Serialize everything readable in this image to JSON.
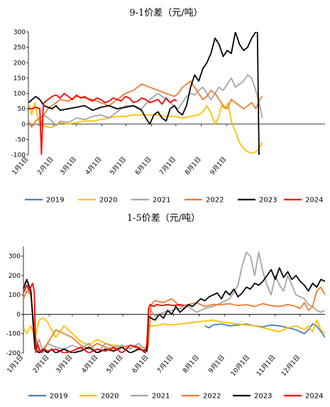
{
  "chart_data": [
    {
      "type": "line",
      "title": "9-1价差（元/吨）",
      "ylim": [
        -100,
        300
      ],
      "yticks": [
        -100,
        -50,
        0,
        50,
        100,
        150,
        200,
        250,
        300
      ],
      "xlim": [
        1,
        365
      ],
      "xticks": [
        {
          "label": "1月1日",
          "day": 1
        },
        {
          "label": "2月1日",
          "day": 32
        },
        {
          "label": "3月1日",
          "day": 60
        },
        {
          "label": "4月1日",
          "day": 91
        },
        {
          "label": "5月1日",
          "day": 121
        },
        {
          "label": "6月1日",
          "day": 152
        },
        {
          "label": "7月1日",
          "day": 182
        },
        {
          "label": "8月1日",
          "day": 213
        },
        {
          "label": "9月1日",
          "day": 244
        }
      ],
      "grid": false,
      "legend_position": "bottom",
      "series": [
        {
          "name": "2019",
          "color": "#4a7ebb",
          "x": [],
          "y": []
        },
        {
          "name": "2020",
          "color": "#ffc000",
          "x": [
            1,
            5,
            9,
            12,
            15,
            20,
            25,
            30,
            40,
            50,
            60,
            70,
            80,
            90,
            100,
            110,
            120,
            130,
            140,
            150,
            160,
            170,
            180,
            190,
            200,
            210,
            215,
            220,
            225,
            230,
            234,
            238,
            242,
            246,
            250,
            255,
            260,
            265,
            270,
            275,
            280,
            285,
            288
          ],
          "y": [
            70,
            30,
            70,
            30,
            0,
            -5,
            -10,
            -10,
            5,
            0,
            5,
            10,
            10,
            15,
            20,
            25,
            25,
            30,
            30,
            30,
            30,
            25,
            25,
            20,
            25,
            30,
            40,
            60,
            35,
            0,
            20,
            60,
            50,
            70,
            10,
            -25,
            -60,
            -80,
            -90,
            -95,
            -90,
            -75,
            -60
          ]
        },
        {
          "name": "2021",
          "color": "#a5a5a5",
          "x": [
            1,
            6,
            10,
            15,
            20,
            25,
            30,
            35,
            40,
            50,
            60,
            70,
            80,
            90,
            100,
            110,
            120,
            130,
            140,
            150,
            160,
            170,
            180,
            185,
            190,
            195,
            200,
            205,
            210,
            215,
            220,
            225,
            230,
            235,
            240,
            245,
            250,
            255,
            260,
            265,
            270,
            275,
            280,
            285,
            288
          ],
          "y": [
            0,
            -5,
            0,
            -5,
            30,
            20,
            10,
            -5,
            10,
            5,
            20,
            15,
            25,
            30,
            20,
            40,
            60,
            60,
            50,
            80,
            100,
            80,
            60,
            50,
            70,
            90,
            100,
            95,
            110,
            120,
            100,
            80,
            100,
            120,
            110,
            130,
            150,
            120,
            130,
            140,
            160,
            150,
            110,
            60,
            20
          ]
        },
        {
          "name": "2022",
          "color": "#ed7d31",
          "x": [
            1,
            5,
            10,
            15,
            20,
            25,
            30,
            35,
            40,
            50,
            60,
            70,
            80,
            90,
            100,
            110,
            120,
            130,
            140,
            150,
            160,
            170,
            180,
            185,
            190,
            195,
            200,
            205,
            210,
            215,
            220,
            225,
            230,
            235,
            240,
            245,
            250,
            255,
            260,
            265,
            270,
            275,
            280,
            285,
            288
          ],
          "y": [
            10,
            -10,
            10,
            20,
            30,
            50,
            60,
            70,
            80,
            75,
            90,
            85,
            80,
            70,
            60,
            80,
            100,
            110,
            130,
            120,
            110,
            100,
            90,
            100,
            120,
            130,
            140,
            120,
            100,
            80,
            90,
            110,
            100,
            80,
            60,
            50,
            80,
            70,
            60,
            50,
            60,
            70,
            50,
            80,
            90
          ]
        },
        {
          "name": "2023",
          "color": "#000000",
          "x": [
            1,
            10,
            15,
            20,
            25,
            30,
            35,
            40,
            50,
            60,
            70,
            80,
            90,
            100,
            110,
            120,
            130,
            140,
            145,
            150,
            155,
            160,
            165,
            170,
            175,
            180,
            185,
            190,
            195,
            200,
            205,
            210,
            215,
            220,
            225,
            230,
            235,
            240,
            245,
            250,
            255,
            260,
            265,
            270,
            275,
            280,
            282,
            284
          ],
          "y": [
            70,
            90,
            80,
            60,
            55,
            50,
            60,
            45,
            50,
            55,
            60,
            45,
            55,
            60,
            50,
            55,
            60,
            45,
            20,
            0,
            30,
            40,
            20,
            10,
            50,
            60,
            40,
            30,
            60,
            120,
            160,
            140,
            180,
            200,
            230,
            280,
            260,
            220,
            240,
            230,
            300,
            260,
            240,
            250,
            280,
            300,
            300,
            -100
          ]
        },
        {
          "name": "2024",
          "color": "#ff0000",
          "x": [
            1,
            5,
            10,
            15,
            17,
            19,
            20,
            25,
            30,
            35,
            40,
            45,
            50,
            55,
            60,
            65,
            70,
            75,
            80,
            85,
            90,
            95,
            100,
            105,
            110,
            115,
            120,
            125,
            130,
            135,
            140,
            145,
            150,
            155,
            160,
            165,
            170,
            175,
            180,
            183
          ],
          "y": [
            50,
            50,
            55,
            50,
            -100,
            50,
            70,
            80,
            90,
            95,
            85,
            100,
            90,
            80,
            95,
            85,
            90,
            80,
            75,
            85,
            80,
            70,
            75,
            85,
            80,
            75,
            90,
            85,
            70,
            75,
            85,
            80,
            70,
            75,
            80,
            65,
            85,
            70,
            80,
            75
          ]
        }
      ]
    },
    {
      "type": "line",
      "title": "1-5价差（元/吨）",
      "ylim": [
        -200,
        350
      ],
      "yticks": [
        -200,
        -100,
        0,
        100,
        200,
        300
      ],
      "xlim": [
        1,
        365
      ],
      "xticks": [
        {
          "label": "1月1日",
          "day": 1
        },
        {
          "label": "2月1日",
          "day": 32
        },
        {
          "label": "3月1日",
          "day": 60
        },
        {
          "label": "4月1日",
          "day": 91
        },
        {
          "label": "5月1日",
          "day": 121
        },
        {
          "label": "6月1日",
          "day": 152
        },
        {
          "label": "7月1日",
          "day": 182
        },
        {
          "label": "8月1日",
          "day": 213
        },
        {
          "label": "9月1日",
          "day": 244
        },
        {
          "label": "10月1日",
          "day": 274
        },
        {
          "label": "11月1日",
          "day": 305
        },
        {
          "label": "12月1日",
          "day": 335
        }
      ],
      "grid": false,
      "legend_position": "bottom",
      "series": [
        {
          "name": "2019",
          "color": "#4a7ebb",
          "x": [
            220,
            225,
            230,
            240,
            250,
            260,
            270,
            280,
            290,
            300,
            310,
            320,
            330,
            335,
            340,
            345,
            350,
            355,
            360,
            365
          ],
          "y": [
            -60,
            -70,
            -55,
            -50,
            -60,
            -55,
            -50,
            -60,
            -65,
            -55,
            -60,
            -70,
            -80,
            -90,
            -100,
            -80,
            -50,
            -60,
            -90,
            -120
          ]
        },
        {
          "name": "2020",
          "color": "#ffc000",
          "x": [
            1,
            5,
            10,
            15,
            20,
            25,
            30,
            35,
            40,
            50,
            60,
            70,
            80,
            90,
            100,
            110,
            120,
            130,
            140,
            145,
            150,
            152,
            155,
            160,
            170,
            180,
            190,
            200,
            210,
            220,
            230,
            240,
            250,
            260,
            270,
            280,
            290,
            300,
            310,
            320,
            330,
            340,
            345,
            350,
            355,
            360,
            365
          ],
          "y": [
            -70,
            -100,
            -60,
            -120,
            -30,
            -20,
            -40,
            -80,
            -120,
            -60,
            -100,
            -140,
            -160,
            -130,
            -150,
            -160,
            -170,
            -160,
            -180,
            -170,
            -190,
            -50,
            -60,
            -60,
            -50,
            -55,
            -50,
            -45,
            -40,
            -35,
            -30,
            -40,
            -45,
            -50,
            -55,
            -60,
            -70,
            -80,
            -90,
            -70,
            -60,
            -80,
            -60,
            -90,
            -30,
            -80,
            -100
          ]
        },
        {
          "name": "2021",
          "color": "#a5a5a5",
          "x": [
            1,
            5,
            10,
            15,
            20,
            25,
            30,
            40,
            50,
            60,
            70,
            80,
            90,
            100,
            110,
            120,
            130,
            140,
            145,
            150,
            152,
            155,
            160,
            170,
            180,
            190,
            200,
            210,
            220,
            230,
            240,
            250,
            260,
            265,
            270,
            275,
            280,
            285,
            290,
            295,
            300,
            305,
            310,
            315,
            320,
            325,
            330,
            340,
            345,
            350,
            355,
            360,
            365
          ],
          "y": [
            150,
            180,
            100,
            -180,
            -130,
            -200,
            -150,
            -170,
            -180,
            -160,
            -180,
            -150,
            -200,
            -150,
            -170,
            -160,
            -180,
            -150,
            -170,
            -180,
            30,
            20,
            -10,
            10,
            20,
            30,
            40,
            10,
            30,
            40,
            60,
            80,
            150,
            250,
            320,
            300,
            200,
            320,
            220,
            150,
            100,
            200,
            150,
            120,
            200,
            150,
            100,
            80,
            50,
            40,
            20,
            10,
            20
          ]
        },
        {
          "name": "2022",
          "color": "#ed7d31",
          "x": [
            1,
            5,
            10,
            15,
            20,
            25,
            30,
            40,
            50,
            60,
            70,
            80,
            90,
            100,
            110,
            120,
            130,
            140,
            150,
            152,
            155,
            160,
            170,
            180,
            190,
            200,
            210,
            220,
            230,
            240,
            250,
            260,
            270,
            280,
            290,
            300,
            310,
            320,
            330,
            335,
            340,
            345,
            350,
            355,
            360,
            365
          ],
          "y": [
            80,
            120,
            100,
            -100,
            -200,
            -180,
            -150,
            -80,
            -100,
            -120,
            -160,
            -180,
            -150,
            -170,
            -180,
            -170,
            -160,
            -180,
            -190,
            -150,
            50,
            70,
            60,
            80,
            40,
            50,
            60,
            40,
            50,
            50,
            55,
            45,
            50,
            40,
            55,
            45,
            40,
            50,
            40,
            30,
            60,
            20,
            40,
            120,
            140,
            100
          ]
        },
        {
          "name": "2023",
          "color": "#000000",
          "x": [
            1,
            5,
            10,
            15,
            20,
            25,
            30,
            35,
            40,
            50,
            60,
            70,
            80,
            90,
            100,
            110,
            120,
            130,
            140,
            150,
            152,
            155,
            160,
            165,
            170,
            175,
            180,
            185,
            190,
            195,
            200,
            205,
            210,
            215,
            220,
            225,
            230,
            235,
            240,
            245,
            250,
            255,
            260,
            265,
            270,
            275,
            280,
            285,
            290,
            295,
            300,
            305,
            310,
            315,
            320,
            325,
            330,
            335,
            340,
            345,
            350,
            355,
            360,
            365
          ],
          "y": [
            130,
            180,
            120,
            -180,
            -200,
            -180,
            -200,
            -180,
            -200,
            -180,
            -200,
            -190,
            -170,
            -200,
            -180,
            -190,
            -170,
            -200,
            -180,
            -190,
            -10,
            -20,
            -30,
            0,
            -20,
            20,
            0,
            40,
            10,
            30,
            50,
            40,
            60,
            80,
            70,
            90,
            100,
            110,
            80,
            120,
            100,
            130,
            90,
            110,
            140,
            130,
            160,
            150,
            170,
            200,
            230,
            180,
            240,
            190,
            220,
            180,
            200,
            170,
            150,
            120,
            160,
            140,
            180,
            170
          ]
        },
        {
          "name": "2024",
          "color": "#ff0000",
          "x": [
            1,
            5,
            8,
            12,
            14,
            16,
            18,
            22,
            26,
            30,
            40,
            50,
            60,
            70,
            80,
            90,
            100,
            110,
            120,
            130,
            140,
            148,
            150,
            152,
            154,
            158,
            162,
            168,
            175,
            182,
            190,
            195
          ],
          "y": [
            110,
            150,
            120,
            160,
            120,
            -200,
            -150,
            -200,
            -180,
            -190,
            -180,
            -200,
            -190,
            -170,
            -200,
            -180,
            -190,
            -170,
            -200,
            -160,
            -170,
            -200,
            -150,
            30,
            50,
            40,
            50,
            45,
            50,
            45,
            50,
            45
          ]
        }
      ]
    }
  ]
}
